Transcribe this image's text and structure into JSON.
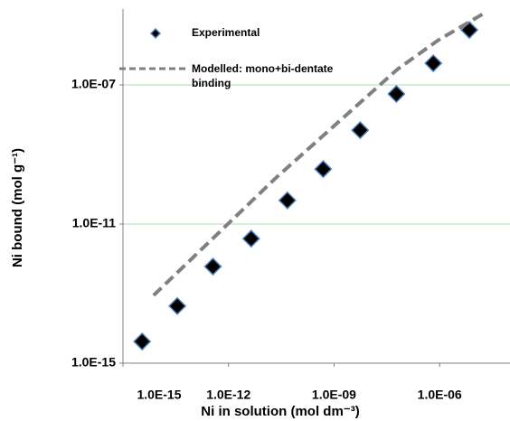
{
  "chart_data": {
    "type": "scatter",
    "x_label": "Ni in solution (mol dm⁻³)",
    "y_label": "Ni bound (mol g⁻¹)",
    "xscale": "log",
    "yscale": "log",
    "xlim": [
      1e-15,
      0.0001
    ],
    "ylim": [
      1e-15,
      1e-05
    ],
    "xticks": [
      {
        "value": 1e-15,
        "label": "1.0E-15"
      },
      {
        "value": 1e-12,
        "label": "1.0E-12"
      },
      {
        "value": 1e-09,
        "label": "1.0E-09"
      },
      {
        "value": 1e-06,
        "label": "1.0E-06"
      }
    ],
    "yticks": [
      {
        "value": 1e-15,
        "label": "1.0E-15"
      },
      {
        "value": 1e-11,
        "label": "1.0E-11"
      },
      {
        "value": 1e-07,
        "label": "1.0E-07"
      }
    ],
    "grid": true,
    "grid_color": "#b3dcb3",
    "series": [
      {
        "name": "Experimental",
        "style": "markers",
        "color": "#000000",
        "edge_color": "#4f81bd",
        "x": [
          3.5e-15,
          3.5e-14,
          3.6e-13,
          4.4e-12,
          4.7e-11,
          4.9e-10,
          5.5e-09,
          5.9e-08,
          6.6e-07,
          7e-06
        ],
        "values": [
          4.2e-15,
          4.4e-14,
          6e-13,
          3.8e-12,
          4.8e-11,
          3.8e-10,
          5e-09,
          5.5e-08,
          4.2e-07,
          3.8e-06
        ]
      },
      {
        "name": "Modelled: mono+bi-dentate binding",
        "style": "dashed",
        "color": "#808080",
        "x": [
          7.4e-15,
          2.3e-11,
          6.3e-08,
          8.9e-07,
          1.7e-05
        ],
        "values": [
          8.9e-14,
          2.2e-10,
          2.8e-07,
          1.9e-06,
          1.1e-05
        ]
      }
    ]
  }
}
